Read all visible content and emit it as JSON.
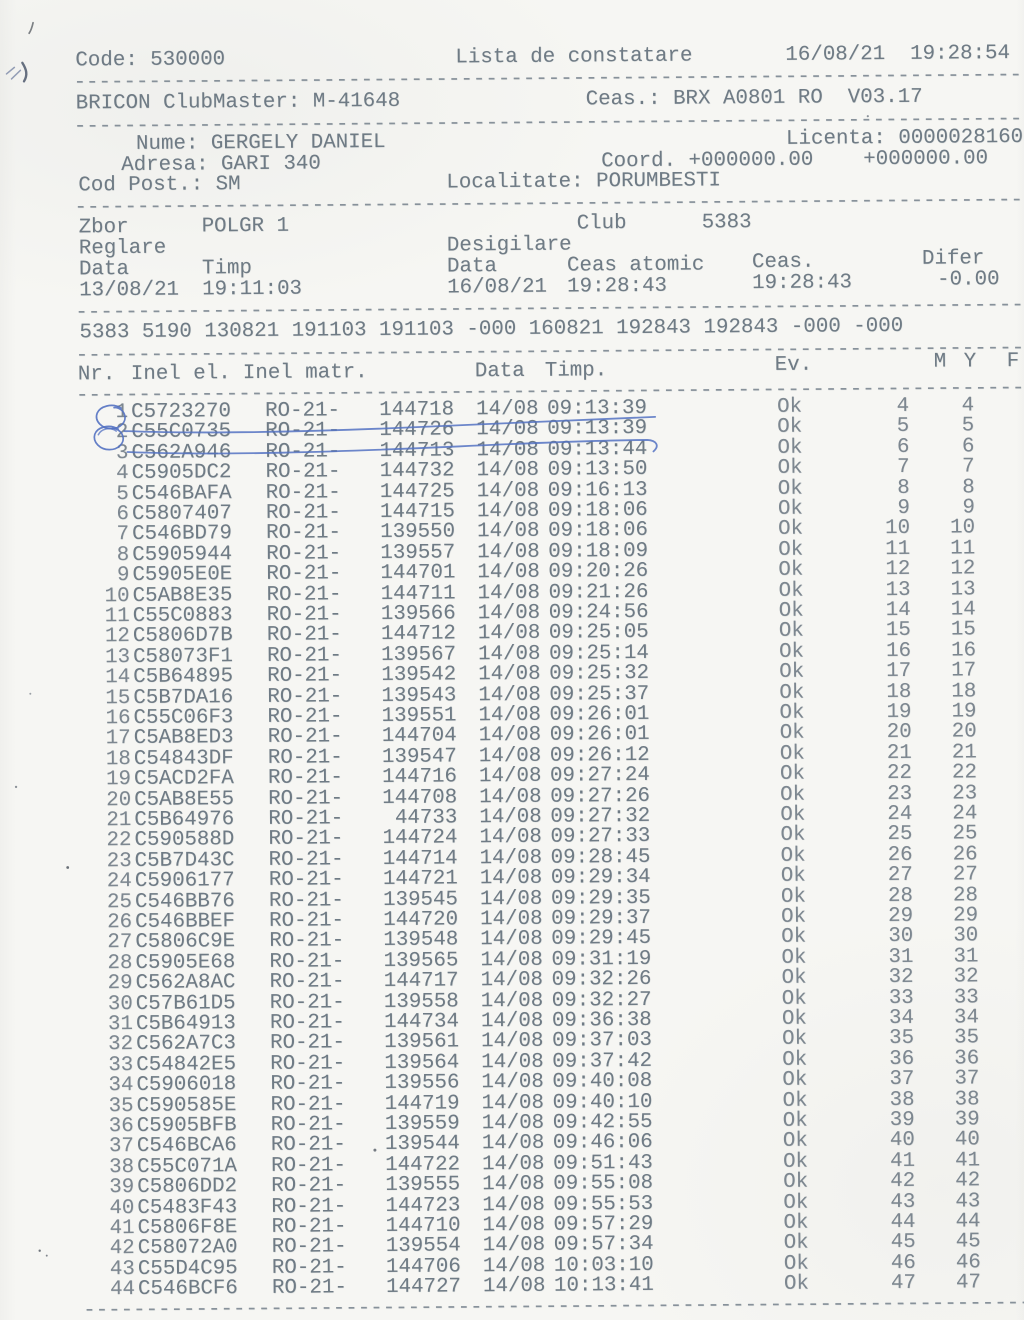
{
  "colors": {
    "ink": "#6f7b85",
    "dash": "#87919a",
    "pen_blue": "#5472c2",
    "pencil": "#6a7077"
  },
  "header": {
    "code": "Code: 530000",
    "title": "Lista de constatare",
    "datetime": "16/08/21  19:28:54"
  },
  "device": {
    "name": "BRICON ClubMaster: M-41648",
    "clock": "Ceas.: BRX A0801 RO  V03.17"
  },
  "owner": {
    "name": "Nume: GERGELY DANIEL",
    "license": "Licenta: 0000028160",
    "address": "Adresa: GARI 340",
    "coord": "Coord. +000000.00    +000000.00",
    "postal": "Cod Post.: SM",
    "locality": "Localitate: PORUMBESTI"
  },
  "flight": {
    "zbor_label": "Zbor",
    "zbor": "POLGR 1",
    "club_label": "Club",
    "club": "5383",
    "reglare_label": "Reglare",
    "desigilare_label": "Desigilare",
    "reglare_data_label": "Data",
    "reglare_timp_label": "Timp",
    "desig_data_label": "Data",
    "ceas_atomic_label": "Ceas atomic",
    "ceas_label": "Ceas.",
    "difer_label": "Difer",
    "reglare_data": "13/08/21",
    "reglare_timp": "19:11:03",
    "desig_data": "16/08/21",
    "ceas_atomic": "19:28:43",
    "ceas": "19:28:43",
    "difer": "-0.00"
  },
  "summary_line": "5383 5190 130821 191103 191103 -000 160821 192843 192843 -000 -000",
  "separator": "--------------------------------------------------------------------------------",
  "table": {
    "headers": {
      "nr": "Nr.",
      "inel_el": "Inel el.",
      "inel_matr": "Inel matr.",
      "data": "Data",
      "timp": "Timp.",
      "ev": "Ev.",
      "m": "M",
      "y": "Y",
      "f": "F"
    },
    "rows": [
      [
        1,
        "C5723270",
        "RO-21-",
        "144718",
        "14/08",
        "09:13:39",
        "Ok",
        4,
        4
      ],
      [
        2,
        "C55C0735",
        "RO-21-",
        "144726",
        "14/08",
        "09:13:39",
        "Ok",
        5,
        5
      ],
      [
        3,
        "C562A946",
        "RO-21-",
        "144713",
        "14/08",
        "09:13:44",
        "Ok",
        6,
        6
      ],
      [
        4,
        "C5905DC2",
        "RO-21-",
        "144732",
        "14/08",
        "09:13:50",
        "Ok",
        7,
        7
      ],
      [
        5,
        "C546BAFA",
        "RO-21-",
        "144725",
        "14/08",
        "09:16:13",
        "Ok",
        8,
        8
      ],
      [
        6,
        "C5807407",
        "RO-21-",
        "144715",
        "14/08",
        "09:18:06",
        "Ok",
        9,
        9
      ],
      [
        7,
        "C546BD79",
        "RO-21-",
        "139550",
        "14/08",
        "09:18:06",
        "Ok",
        10,
        10
      ],
      [
        8,
        "C5905944",
        "RO-21-",
        "139557",
        "14/08",
        "09:18:09",
        "Ok",
        11,
        11
      ],
      [
        9,
        "C5905E0E",
        "RO-21-",
        "144701",
        "14/08",
        "09:20:26",
        "Ok",
        12,
        12
      ],
      [
        10,
        "C5AB8E35",
        "RO-21-",
        "144711",
        "14/08",
        "09:21:26",
        "Ok",
        13,
        13
      ],
      [
        11,
        "C55C0883",
        "RO-21-",
        "139566",
        "14/08",
        "09:24:56",
        "Ok",
        14,
        14
      ],
      [
        12,
        "C5806D7B",
        "RO-21-",
        "144712",
        "14/08",
        "09:25:05",
        "Ok",
        15,
        15
      ],
      [
        13,
        "C58073F1",
        "RO-21-",
        "139567",
        "14/08",
        "09:25:14",
        "Ok",
        16,
        16
      ],
      [
        14,
        "C5B64895",
        "RO-21-",
        "139542",
        "14/08",
        "09:25:32",
        "Ok",
        17,
        17
      ],
      [
        15,
        "C5B7DA16",
        "RO-21-",
        "139543",
        "14/08",
        "09:25:37",
        "Ok",
        18,
        18
      ],
      [
        16,
        "C55C06F3",
        "RO-21-",
        "139551",
        "14/08",
        "09:26:01",
        "Ok",
        19,
        19
      ],
      [
        17,
        "C5AB8ED3",
        "RO-21-",
        "144704",
        "14/08",
        "09:26:01",
        "Ok",
        20,
        20
      ],
      [
        18,
        "C54843DF",
        "RO-21-",
        "139547",
        "14/08",
        "09:26:12",
        "Ok",
        21,
        21
      ],
      [
        19,
        "C5ACD2FA",
        "RO-21-",
        "144716",
        "14/08",
        "09:27:24",
        "Ok",
        22,
        22
      ],
      [
        20,
        "C5AB8E55",
        "RO-21-",
        "144708",
        "14/08",
        "09:27:26",
        "Ok",
        23,
        23
      ],
      [
        21,
        "C5B64976",
        "RO-21-",
        "44733",
        "14/08",
        "09:27:32",
        "Ok",
        24,
        24
      ],
      [
        22,
        "C590588D",
        "RO-21-",
        "144724",
        "14/08",
        "09:27:33",
        "Ok",
        25,
        25
      ],
      [
        23,
        "C5B7D43C",
        "RO-21-",
        "144714",
        "14/08",
        "09:28:45",
        "Ok",
        26,
        26
      ],
      [
        24,
        "C5906177",
        "RO-21-",
        "144721",
        "14/08",
        "09:29:34",
        "Ok",
        27,
        27
      ],
      [
        25,
        "C546BB76",
        "RO-21-",
        "139545",
        "14/08",
        "09:29:35",
        "Ok",
        28,
        28
      ],
      [
        26,
        "C546BBEF",
        "RO-21-",
        "144720",
        "14/08",
        "09:29:37",
        "Ok",
        29,
        29
      ],
      [
        27,
        "C5806C9E",
        "RO-21-",
        "139548",
        "14/08",
        "09:29:45",
        "Ok",
        30,
        30
      ],
      [
        28,
        "C5905E68",
        "RO-21-",
        "139565",
        "14/08",
        "09:31:19",
        "Ok",
        31,
        31
      ],
      [
        29,
        "C562A8AC",
        "RO-21-",
        "144717",
        "14/08",
        "09:32:26",
        "Ok",
        32,
        32
      ],
      [
        30,
        "C57B61D5",
        "RO-21-",
        "139558",
        "14/08",
        "09:32:27",
        "Ok",
        33,
        33
      ],
      [
        31,
        "C5B64913",
        "RO-21-",
        "144734",
        "14/08",
        "09:36:38",
        "Ok",
        34,
        34
      ],
      [
        32,
        "C562A7C3",
        "RO-21-",
        "139561",
        "14/08",
        "09:37:03",
        "Ok",
        35,
        35
      ],
      [
        33,
        "C54842E5",
        "RO-21-",
        "139564",
        "14/08",
        "09:37:42",
        "Ok",
        36,
        36
      ],
      [
        34,
        "C5906018",
        "RO-21-",
        "139556",
        "14/08",
        "09:40:08",
        "Ok",
        37,
        37
      ],
      [
        35,
        "C590585E",
        "RO-21-",
        "144719",
        "14/08",
        "09:40:10",
        "Ok",
        38,
        38
      ],
      [
        36,
        "C5905BFB",
        "RO-21-",
        "139559",
        "14/08",
        "09:42:55",
        "Ok",
        39,
        39
      ],
      [
        37,
        "C546BCA6",
        "RO-21-",
        "139544",
        "14/08",
        "09:46:06",
        "Ok",
        40,
        40
      ],
      [
        38,
        "C55C071A",
        "RO-21-",
        "144722",
        "14/08",
        "09:51:43",
        "Ok",
        41,
        41
      ],
      [
        39,
        "C5806DD2",
        "RO-21-",
        "139555",
        "14/08",
        "09:55:08",
        "Ok",
        42,
        42
      ],
      [
        40,
        "C5483F43",
        "RO-21-",
        "144723",
        "14/08",
        "09:55:53",
        "Ok",
        43,
        43
      ],
      [
        41,
        "C5806F8E",
        "RO-21-",
        "144710",
        "14/08",
        "09:57:29",
        "Ok",
        44,
        44
      ],
      [
        42,
        "C58072A0",
        "RO-21-",
        "139554",
        "14/08",
        "09:57:34",
        "Ok",
        45,
        45
      ],
      [
        43,
        "C55D4C95",
        "RO-21-",
        "144706",
        "14/08",
        "10:03:10",
        "Ok",
        46,
        46
      ],
      [
        44,
        "C546BCF6",
        "RO-21-",
        "144727",
        "14/08",
        "10:13:41",
        "Ok",
        47,
        47
      ]
    ]
  }
}
